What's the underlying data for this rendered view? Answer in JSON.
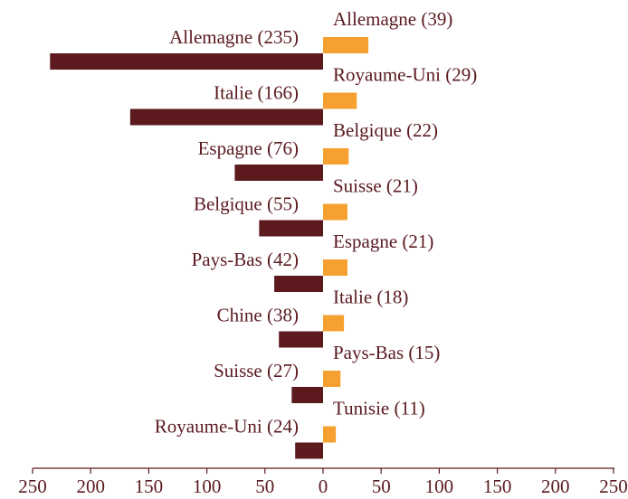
{
  "chart_data": [
    {
      "type": "hbar",
      "color": "#5c1a1f",
      "values": [
        235,
        166,
        76,
        55,
        42,
        38,
        27,
        24
      ],
      "value_labels": [
        "Allemagne (235)",
        "Italie (166)",
        "Espagne (76)",
        "Belgique (55)",
        "Pays-Bas (42)",
        "Chine (38)",
        "Suisse (27)",
        "Royaume-Uni (24)"
      ],
      "xlim": [
        250,
        0
      ],
      "xticks": [
        250,
        200,
        150,
        100,
        50
      ]
    },
    {
      "type": "hbar",
      "color": "#f5a030",
      "values": [
        39,
        29,
        22,
        21,
        21,
        18,
        15,
        11
      ],
      "value_labels": [
        "Allemagne (39)",
        "Royaume-Uni (29)",
        "Belgique (22)",
        "Suisse (21)",
        "Espagne (21)",
        "Italie (18)",
        "Pays-Bas (15)",
        "Tunisie (11)"
      ],
      "xlim": [
        0,
        250
      ],
      "xticks": [
        0,
        50,
        100,
        150,
        200,
        250
      ]
    }
  ]
}
